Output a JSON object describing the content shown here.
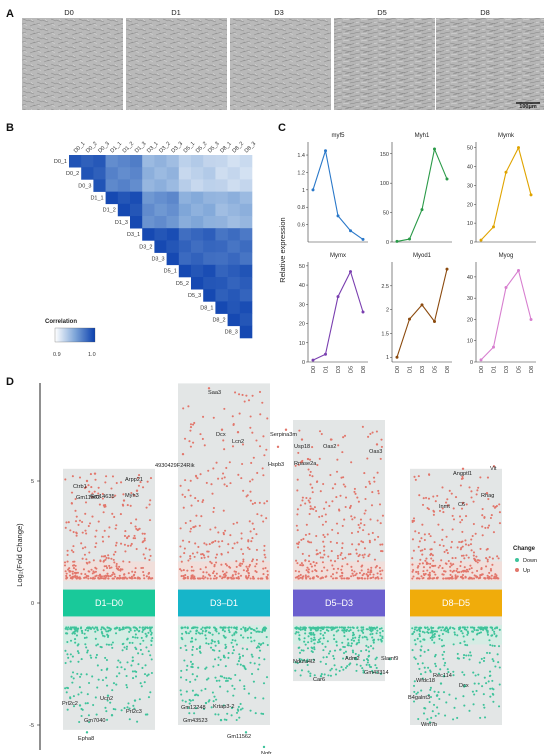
{
  "panels": {
    "a": "A",
    "b": "B",
    "c": "C",
    "d": "D"
  },
  "panelA": {
    "labels": [
      "D0",
      "D1",
      "D3",
      "D5",
      "D8"
    ],
    "scalebar": "100μm"
  },
  "panelB": {
    "samples": [
      "D0_1",
      "D0_2",
      "D0_3",
      "D1_1",
      "D1_2",
      "D1_3",
      "D3_1",
      "D3_2",
      "D3_3",
      "D5_1",
      "D5_2",
      "D5_3",
      "D8_1",
      "D8_2",
      "D8_3"
    ],
    "legend_title": "Correlation",
    "legend_min": "0.9",
    "legend_max": "1.0",
    "colors": {
      "low": "#ffffff",
      "high": "#0a3fae"
    }
  },
  "panelC": {
    "ylabel": "Relative expression",
    "xticks": [
      "D0",
      "D1",
      "D3",
      "D5",
      "D8"
    ]
  },
  "panelD": {
    "ylabel": "Log₂(Fold Change)",
    "yticks": [
      "5",
      "0",
      "-5"
    ],
    "legend_title": "Change",
    "legend_items": [
      "Down",
      "Up"
    ],
    "colors": {
      "down": "#3ec39b",
      "up": "#e2766b"
    },
    "groups": [
      {
        "label": "D1–D0",
        "color": "#19c99a"
      },
      {
        "label": "D3–D1",
        "color": "#16b5c9"
      },
      {
        "label": "D5–D3",
        "color": "#6b5fcf"
      },
      {
        "label": "D8–D5",
        "color": "#f0ac0b"
      }
    ],
    "genes": {
      "g1": [
        "Gm11562",
        "Ctrb1",
        "Arpp21",
        "Gm14635",
        "Myh3",
        "Prl2c2",
        "Ucn2",
        "Prl2c3",
        "Gm7040",
        "Epha8"
      ],
      "g2": [
        "Saa3",
        "Dcx",
        "Lcn2",
        "4930429F24Rik",
        "Gm12248",
        "Krtap3-2",
        "Gm43523",
        "Gm11562",
        "Ngfr"
      ],
      "g3": [
        "Serpina3m",
        "Usp18",
        "Oas2",
        "Oas3",
        "Hspb3",
        "Rnase2a",
        "Ndufa4l2",
        "Adm2",
        "Slamf9",
        "Car6",
        "Gm43314"
      ],
      "g4": [
        "Angptl1",
        "Vit",
        "Rhag",
        "Inmt",
        "C6",
        "Wfdc18",
        "Rec114",
        "B4galnt3",
        "Dcx",
        "Wnt7b"
      ]
    }
  },
  "chart_data": [
    {
      "type": "heatmap",
      "title": "",
      "rows": [
        "D0_1",
        "D0_2",
        "D0_3",
        "D1_1",
        "D1_2",
        "D1_3",
        "D3_1",
        "D3_2",
        "D3_3",
        "D5_1",
        "D5_2",
        "D5_3",
        "D8_1",
        "D8_2",
        "D8_3"
      ],
      "cols": [
        "D0_1",
        "D0_2",
        "D0_3",
        "D1_1",
        "D1_2",
        "D1_3",
        "D3_1",
        "D3_2",
        "D3_3",
        "D5_1",
        "D5_2",
        "D5_3",
        "D8_1",
        "D8_2",
        "D8_3"
      ],
      "legend": {
        "title": "Correlation",
        "range": [
          0.9,
          1.0
        ]
      },
      "group_similarity": [
        [
          0.99,
          0.97,
          0.945,
          0.93,
          0.925
        ],
        [
          0.97,
          0.995,
          0.965,
          0.95,
          0.945
        ],
        [
          0.945,
          0.965,
          0.995,
          0.985,
          0.98
        ],
        [
          0.93,
          0.95,
          0.985,
          0.995,
          0.99
        ],
        [
          0.925,
          0.945,
          0.98,
          0.99,
          0.995
        ]
      ]
    },
    {
      "type": "line",
      "x": [
        "D0",
        "D1",
        "D3",
        "D5",
        "D8"
      ],
      "ylabel": "Relative expression",
      "series": [
        {
          "name": "myf5",
          "color": "#2a78c9",
          "values": [
            1.0,
            1.45,
            0.7,
            0.53,
            0.43
          ],
          "ylim": [
            0.4,
            1.55
          ],
          "yticks": [
            0.6,
            0.8,
            1.0,
            1.2,
            1.4
          ]
        },
        {
          "name": "Myh1",
          "color": "#2a9a48",
          "values": [
            1,
            5,
            55,
            158,
            107
          ],
          "ylim": [
            0,
            170
          ],
          "yticks": [
            0,
            50,
            100,
            150
          ]
        },
        {
          "name": "Mymk",
          "color": "#e0a400",
          "values": [
            1,
            8,
            37,
            50,
            25
          ],
          "ylim": [
            0,
            53
          ],
          "yticks": [
            0,
            10,
            20,
            30,
            40,
            50
          ]
        },
        {
          "name": "Mymx",
          "color": "#7a3fb0",
          "values": [
            1,
            4,
            34,
            47,
            26
          ],
          "ylim": [
            0,
            52
          ],
          "yticks": [
            0,
            10,
            20,
            30,
            40,
            50
          ]
        },
        {
          "name": "Myod1",
          "color": "#8b4a0e",
          "values": [
            1.0,
            1.8,
            2.1,
            1.75,
            2.85
          ],
          "ylim": [
            0.9,
            3.0
          ],
          "yticks": [
            1.0,
            1.5,
            2.0,
            2.5
          ]
        },
        {
          "name": "Myog",
          "color": "#d77fcf",
          "values": [
            1,
            7,
            35,
            43,
            20
          ],
          "ylim": [
            0,
            47
          ],
          "yticks": [
            0,
            10,
            20,
            30,
            40
          ]
        }
      ]
    },
    {
      "type": "scatter",
      "ylabel": "Log₂(Fold Change)",
      "categories": [
        "D1–D0",
        "D3–D1",
        "D5–D3",
        "D8–D5"
      ],
      "series": [
        {
          "name": "Up"
        },
        {
          "name": "Down"
        }
      ],
      "ranges": {
        "D1–D0": {
          "up_max": 5.5,
          "down_min": -5.2
        },
        "D3–D1": {
          "up_max": 9.0,
          "down_min": -5.0
        },
        "D5–D3": {
          "up_max": 7.5,
          "down_min": -3.2
        },
        "D8–D5": {
          "up_max": 5.5,
          "down_min": -5.0
        }
      }
    }
  ]
}
